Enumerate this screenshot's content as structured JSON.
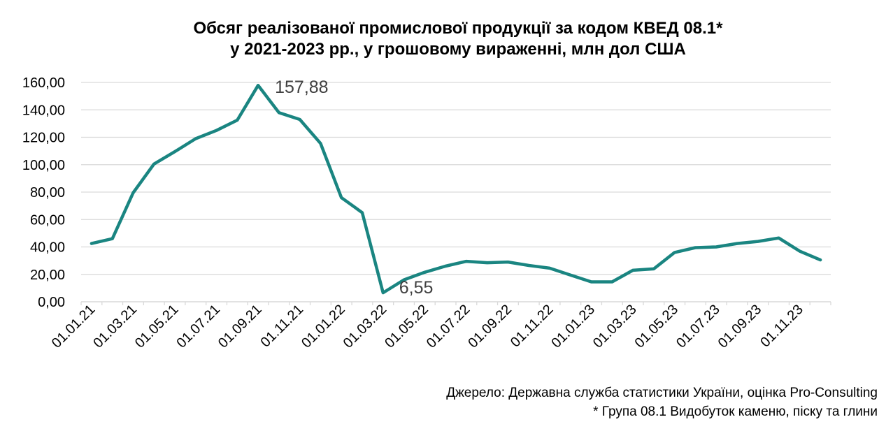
{
  "chart_data": {
    "type": "line",
    "title_line1": "Обсяг реалізованої промислової продукції за кодом КВЕД 08.1*",
    "title_line2": "у 2021-2023 рр., у грошовому вираженні, млн дол США",
    "xlabel": "",
    "ylabel": "",
    "ylim": [
      0,
      160
    ],
    "y_ticks": [
      "0,00",
      "20,00",
      "40,00",
      "60,00",
      "80,00",
      "100,00",
      "120,00",
      "140,00",
      "160,00"
    ],
    "x_tick_labels": [
      "01.01.21",
      "01.03.21",
      "01.05.21",
      "01.07.21",
      "01.09.21",
      "01.11.21",
      "01.01.22",
      "01.03.22",
      "01.05.22",
      "01.07.22",
      "01.09.22",
      "01.11.22",
      "01.01.23",
      "01.03.23",
      "01.05.23",
      "01.07.23",
      "01.09.23",
      "01.11.23"
    ],
    "x": [
      "01.01.21",
      "01.02.21",
      "01.03.21",
      "01.04.21",
      "01.05.21",
      "01.06.21",
      "01.07.21",
      "01.08.21",
      "01.09.21",
      "01.10.21",
      "01.11.21",
      "01.12.21",
      "01.01.22",
      "01.02.22",
      "01.03.22",
      "01.04.22",
      "01.05.22",
      "01.06.22",
      "01.07.22",
      "01.08.22",
      "01.09.22",
      "01.10.22",
      "01.11.22",
      "01.12.22",
      "01.01.23",
      "01.02.23",
      "01.03.23",
      "01.04.23",
      "01.05.23",
      "01.06.23",
      "01.07.23",
      "01.08.23",
      "01.09.23",
      "01.10.23",
      "01.11.23",
      "01.12.23"
    ],
    "values": [
      42.5,
      46.0,
      79.5,
      100.5,
      109.5,
      119.0,
      125.0,
      132.5,
      157.88,
      138.0,
      133.0,
      115.5,
      76.0,
      65.0,
      6.55,
      16.0,
      21.5,
      26.0,
      29.5,
      28.5,
      29.0,
      26.5,
      24.5,
      19.5,
      14.5,
      14.5,
      23.0,
      24.0,
      36.0,
      39.5,
      40.0,
      42.5,
      44.0,
      46.5,
      37.0,
      30.5
    ],
    "annotations": [
      {
        "index": 8,
        "text": "157,88"
      },
      {
        "index": 14,
        "text": "6,55"
      }
    ],
    "grid": true,
    "line_color": "#1a8581",
    "grid_color": "#d9d9d9",
    "axis_color": "#d9d9d9"
  },
  "footer": {
    "source": "Джерело: Державна служба статистики України, оцінка Pro-Consulting",
    "note": "* Група 08.1 Видобуток каменю, піску та глини"
  }
}
